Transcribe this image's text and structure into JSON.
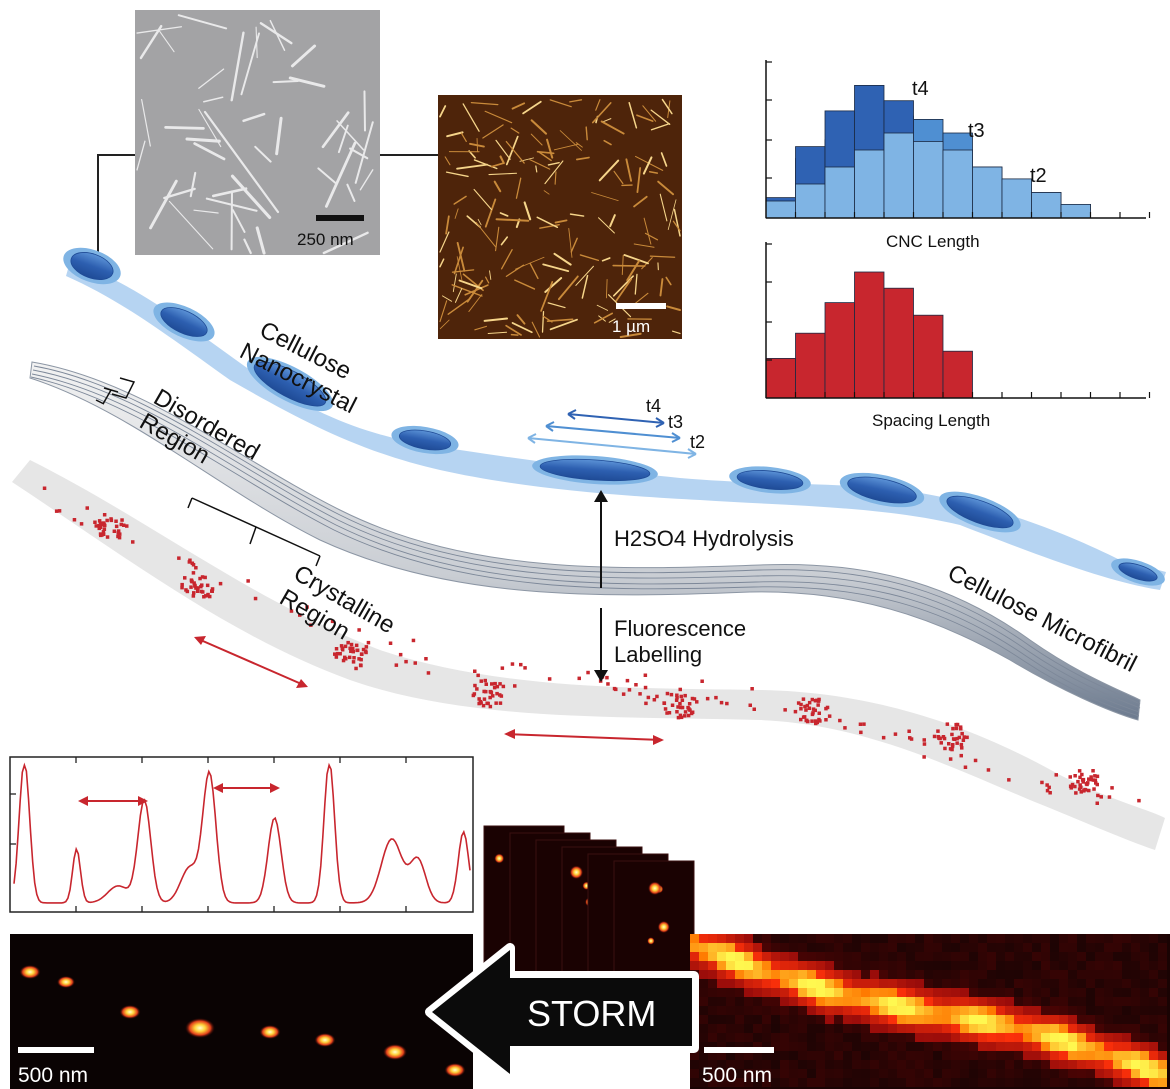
{
  "labels": {
    "cellulose_nanocrystal_line1": "Cellulose",
    "cellulose_nanocrystal_line2": "Nanocrystal",
    "disordered_line1": "Disordered",
    "disordered_line2": "Region",
    "crystalline_line1": "Crystalline",
    "crystalline_line2": "Region",
    "microfibril": "Cellulose Microfibril",
    "hydrolysis": "H2SO4 Hydrolysis",
    "fluorescence_line1": "Fluorescence",
    "fluorescence_line2": "Labelling",
    "storm": "STORM",
    "t4": "t4",
    "t3": "t3",
    "t2": "t2"
  },
  "scale_bars": {
    "tem": "250 nm",
    "afm": "1 µm",
    "storm_left": "500 nm",
    "storm_right": "500 nm"
  },
  "colors": {
    "blue_dark": "#2f62b3",
    "blue_mid": "#4f8fd2",
    "blue_light": "#7fb4e4",
    "red": "#c8262e",
    "gray_band": "#e6e6e6",
    "afm_bg": "#5a2a0c",
    "storm_bg": "#0a0303"
  },
  "chart_data": [
    {
      "type": "bar",
      "xlabel": "CNC Length",
      "series": [
        {
          "name": "t2",
          "values": [
            1,
            2,
            3,
            4,
            5,
            4.5,
            4,
            3,
            2.3,
            1.5,
            0.8
          ]
        },
        {
          "name": "t3",
          "values": [
            1,
            3.5,
            4.6,
            5.5,
            6,
            5.8,
            5
          ]
        },
        {
          "name": "t4",
          "values": [
            1.2,
            4.2,
            6.3,
            7.8,
            6.9
          ]
        }
      ]
    },
    {
      "type": "bar",
      "xlabel": "Spacing Length",
      "values": [
        2.2,
        3.6,
        5.3,
        7,
        6.1,
        4.6,
        2.6
      ]
    },
    {
      "type": "line",
      "x": [
        0,
        0.1,
        0.2,
        0.3,
        0.4,
        0.5,
        0.6,
        0.7,
        0.8,
        0.9,
        1.0,
        1.1,
        1.2,
        1.3,
        1.4,
        1.5,
        1.6,
        1.7,
        1.8,
        1.9,
        2.0,
        2.1,
        2.2,
        2.3,
        2.4,
        2.5,
        2.6,
        2.7,
        2.8,
        2.9,
        3.0,
        3.1,
        3.2,
        3.3,
        3.4,
        3.5
      ],
      "values": [
        0.12,
        1.0,
        0.12,
        0.05,
        0.38,
        0.05,
        0.08,
        0.12,
        0.15,
        0.14,
        0.72,
        0.1,
        0.25,
        0.35,
        0.9,
        0.2,
        0.08,
        0.12,
        0.6,
        0.12,
        0.08,
        0.1,
        0.25,
        1.0,
        0.2,
        0.05,
        0.08,
        0.3,
        0.45,
        0.38,
        0.3,
        0.25,
        0.2,
        0.22,
        0.52,
        0.05
      ]
    }
  ]
}
